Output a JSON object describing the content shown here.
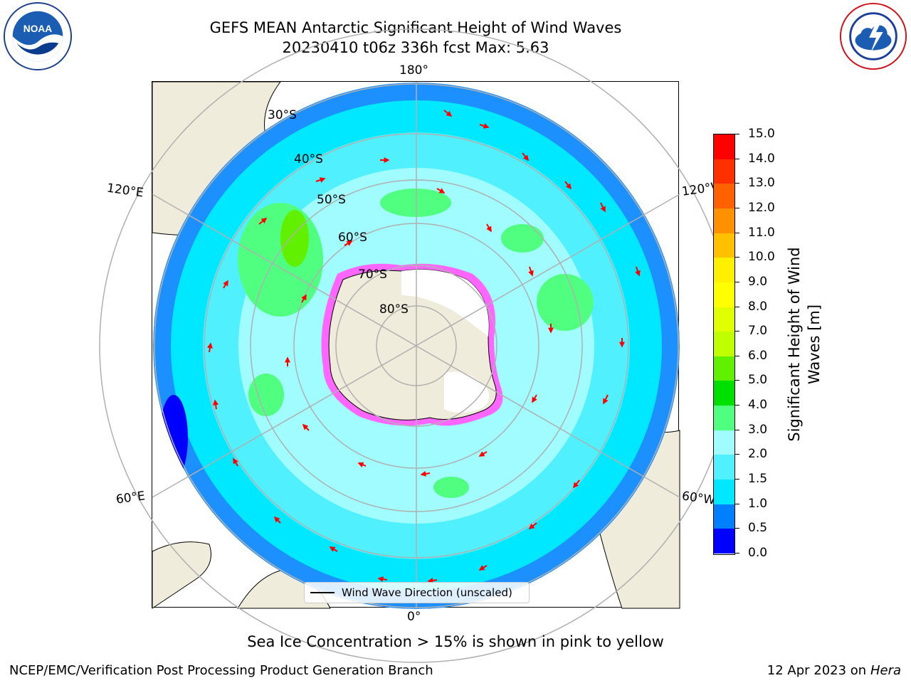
{
  "header": {
    "title_line1": "GEFS MEAN Antarctic Significant Height of Wind Waves",
    "title_line2": "20230410 t06z 336h fcst   Max: 5.63"
  },
  "logos": {
    "left": "NOAA",
    "right": "NATIONAL WEATHER SERVICE"
  },
  "map": {
    "projection": "south-polar-stereographic",
    "lon_labels": {
      "top": "180°",
      "bottom": "0°",
      "left_upper": "120°E",
      "left_lower": "60°E",
      "right_upper": "120°W",
      "right_lower": "60°W"
    },
    "lat_labels": [
      "30°S",
      "40°S",
      "50°S",
      "60°S",
      "70°S",
      "80°S"
    ],
    "colors": {
      "land": "#efecdc",
      "ice": "#ffffff",
      "arrow": "#ff0000",
      "grid": "#b0b0b0"
    }
  },
  "colorbar": {
    "label": "Significant Height of Wind Waves [m]",
    "label_line1": "Significant Height of Wind",
    "label_line2": "Waves [m]",
    "ticks": [
      "15.0",
      "14.0",
      "13.0",
      "12.0",
      "11.0",
      "10.0",
      "9.0",
      "8.0",
      "7.0",
      "6.0",
      "5.0",
      "4.0",
      "3.0",
      "2.0",
      "1.5",
      "1.0",
      "0.5",
      "0.0"
    ],
    "levels": [
      {
        "min": 0.0,
        "max": 0.5,
        "color": "#0000ff"
      },
      {
        "min": 0.5,
        "max": 1.0,
        "color": "#0080ff"
      },
      {
        "min": 1.0,
        "max": 1.5,
        "color": "#00e8ff"
      },
      {
        "min": 1.5,
        "max": 2.0,
        "color": "#50f0ff"
      },
      {
        "min": 2.0,
        "max": 3.0,
        "color": "#a0fcff"
      },
      {
        "min": 3.0,
        "max": 4.0,
        "color": "#50ff80"
      },
      {
        "min": 4.0,
        "max": 5.0,
        "color": "#00e000"
      },
      {
        "min": 5.0,
        "max": 6.0,
        "color": "#60f000"
      },
      {
        "min": 6.0,
        "max": 7.0,
        "color": "#c0ff00"
      },
      {
        "min": 7.0,
        "max": 8.0,
        "color": "#e0ff00"
      },
      {
        "min": 8.0,
        "max": 9.0,
        "color": "#ffff00"
      },
      {
        "min": 9.0,
        "max": 10.0,
        "color": "#fff000"
      },
      {
        "min": 10.0,
        "max": 11.0,
        "color": "#ffc000"
      },
      {
        "min": 11.0,
        "max": 12.0,
        "color": "#ff9000"
      },
      {
        "min": 12.0,
        "max": 13.0,
        "color": "#ff6000"
      },
      {
        "min": 13.0,
        "max": 14.0,
        "color": "#ff3000"
      },
      {
        "min": 14.0,
        "max": 15.0,
        "color": "#ff0000"
      }
    ]
  },
  "legend": {
    "label": "Wind Wave Direction (unscaled)"
  },
  "footer": {
    "note": "Sea Ice Concentration > 15% is shown in pink to yellow",
    "left": "NCEP/EMC/Verification Post Processing Product Generation Branch",
    "right_prefix": "12 Apr 2023 on ",
    "right_italic": "Hera"
  }
}
